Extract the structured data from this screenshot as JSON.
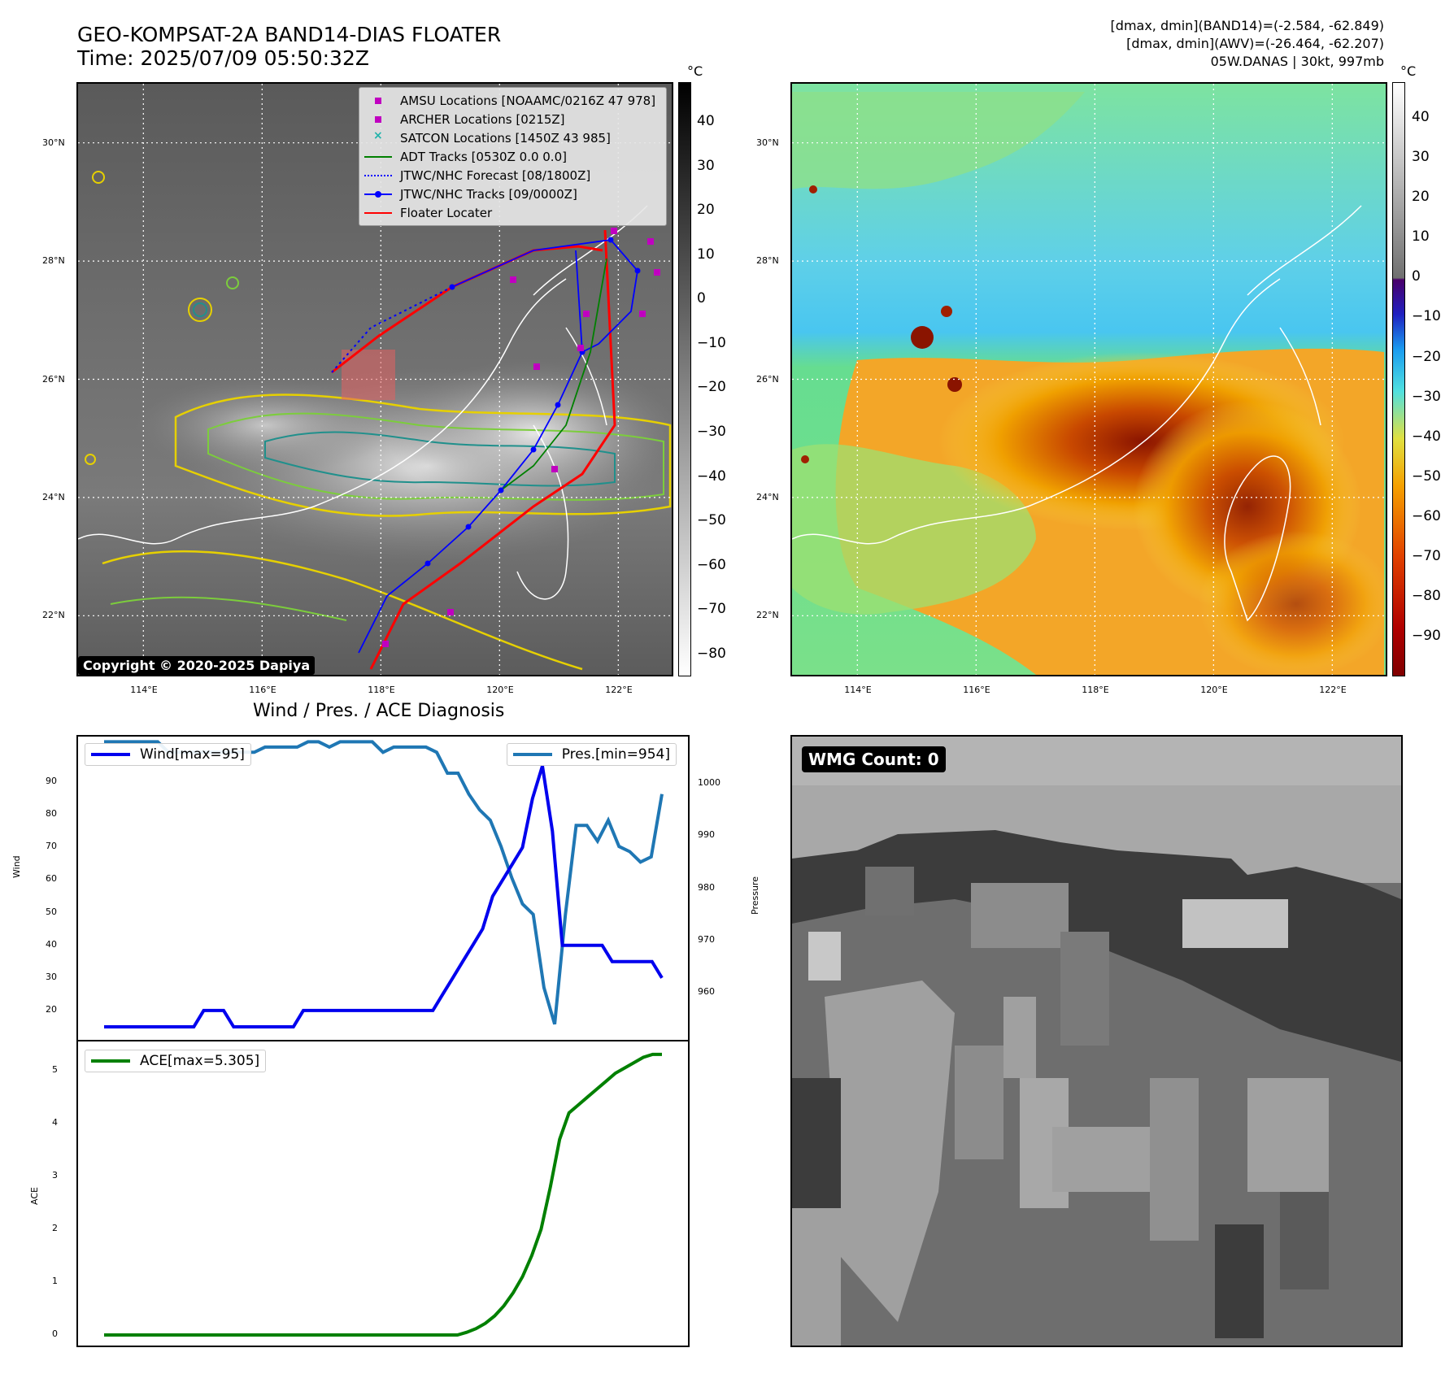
{
  "title": {
    "line1": "GEO-KOMPSAT-2A BAND14-DIAS FLOATER",
    "line2": "Time: 2025/07/09 05:50:32Z"
  },
  "info": {
    "line1": "[dmax, dmin](BAND14)=(-2.584, -62.849)",
    "line2": "[dmax, dmin](AWV)=(-26.464, -62.207)",
    "line3": "05W.DANAS | 30kt, 997mb"
  },
  "map": {
    "lat_labels": [
      "30°N",
      "28°N",
      "26°N",
      "24°N",
      "22°N"
    ],
    "lon_labels": [
      "114°E",
      "116°E",
      "118°E",
      "120°E",
      "122°E"
    ],
    "lon_range": [
      112.9,
      122.9
    ],
    "lat_range": [
      21.0,
      31.0
    ],
    "copyright": "Copyright © 2020-2025 Dapiya"
  },
  "legend": {
    "items": [
      {
        "label": "AMSU Locations [NOAAMC/0216Z 47 978]",
        "symbol": "square",
        "color": "#c000c0"
      },
      {
        "label": "ARCHER Locations [0215Z]",
        "symbol": "square",
        "color": "#c000c0"
      },
      {
        "label": "SATCON Locations [1450Z 43 985]",
        "symbol": "x",
        "color": "#20b2aa"
      },
      {
        "label": "ADT Tracks [0530Z 0.0 0.0]",
        "symbol": "line",
        "color": "#008000"
      },
      {
        "label": "JTWC/NHC Forecast [08/1800Z]",
        "symbol": "dotted",
        "color": "#0000ff"
      },
      {
        "label": "JTWC/NHC Tracks [09/0000Z]",
        "symbol": "line-dot",
        "color": "#0000ff"
      },
      {
        "label": "Floater Locater",
        "symbol": "line",
        "color": "#ff0000"
      }
    ]
  },
  "colorbar1": {
    "unit": "°C",
    "ticks": [
      "40",
      "30",
      "20",
      "10",
      "0",
      "−10",
      "−20",
      "−30",
      "−40",
      "−50",
      "−60",
      "−70",
      "−80"
    ],
    "range": [
      49,
      -85
    ]
  },
  "colorbar2": {
    "unit": "°C",
    "ticks": [
      "40",
      "30",
      "20",
      "10",
      "0",
      "−10",
      "−20",
      "−30",
      "−40",
      "−50",
      "−60",
      "−70",
      "−80",
      "−90"
    ],
    "range": [
      49,
      -100
    ]
  },
  "diagnosis_title": "Wind / Pres. / ACE Diagnosis",
  "chart_data": [
    {
      "type": "line",
      "title": "Wind / Pres. / ACE Diagnosis",
      "ylabel": "Wind",
      "ylabel_right": "Pressure",
      "ylim": [
        11,
        104
      ],
      "ylim_right": [
        951,
        1009
      ],
      "yticks": [
        20,
        30,
        40,
        50,
        60,
        70,
        80,
        90
      ],
      "yticks_right": [
        960,
        970,
        980,
        990,
        1000
      ],
      "legend_placement": "top-left and top-right",
      "series": [
        {
          "name": "Wind[max=95]",
          "axis": "left",
          "color": "#0000ee",
          "values": [
            15,
            15,
            15,
            15,
            15,
            15,
            15,
            15,
            15,
            15,
            20,
            20,
            20,
            15,
            15,
            15,
            15,
            15,
            15,
            15,
            20,
            20,
            20,
            20,
            20,
            20,
            20,
            20,
            20,
            20,
            20,
            20,
            20,
            20,
            25,
            30,
            35,
            40,
            45,
            55,
            60,
            65,
            70,
            85,
            95,
            75,
            40,
            40,
            40,
            40,
            40,
            35,
            35,
            35,
            35,
            35,
            30
          ]
        },
        {
          "name": "Pres.[min=954]",
          "axis": "right",
          "color": "#1f77b4",
          "values": [
            1008,
            1008,
            1008,
            1008,
            1008,
            1008,
            1006,
            1006,
            1006,
            1006,
            1006,
            1006,
            1006,
            1006,
            1006,
            1007,
            1007,
            1007,
            1007,
            1008,
            1008,
            1007,
            1008,
            1008,
            1008,
            1008,
            1006,
            1007,
            1007,
            1007,
            1007,
            1006,
            1002,
            1002,
            998,
            995,
            993,
            988,
            982,
            977,
            975,
            961,
            954,
            975,
            992,
            992,
            989,
            993,
            988,
            987,
            985,
            986,
            998
          ]
        }
      ]
    },
    {
      "type": "line",
      "ylabel": "ACE",
      "ylim": [
        -0.2,
        5.55
      ],
      "yticks": [
        0,
        1,
        2,
        3,
        4,
        5
      ],
      "series": [
        {
          "name": "ACE[max=5.305]",
          "color": "#008000",
          "values": [
            0,
            0,
            0,
            0,
            0,
            0,
            0,
            0,
            0,
            0,
            0,
            0,
            0,
            0,
            0,
            0,
            0,
            0,
            0,
            0,
            0,
            0,
            0,
            0,
            0,
            0,
            0,
            0,
            0,
            0,
            0,
            0,
            0,
            0,
            0,
            0,
            0,
            0,
            0,
            0.05,
            0.12,
            0.22,
            0.36,
            0.55,
            0.8,
            1.1,
            1.5,
            2.0,
            2.8,
            3.7,
            4.2,
            4.35,
            4.5,
            4.65,
            4.8,
            4.95,
            5.05,
            5.15,
            5.25,
            5.305,
            5.305
          ]
        }
      ]
    }
  ],
  "wmg": {
    "label": "WMG Count: 0"
  }
}
